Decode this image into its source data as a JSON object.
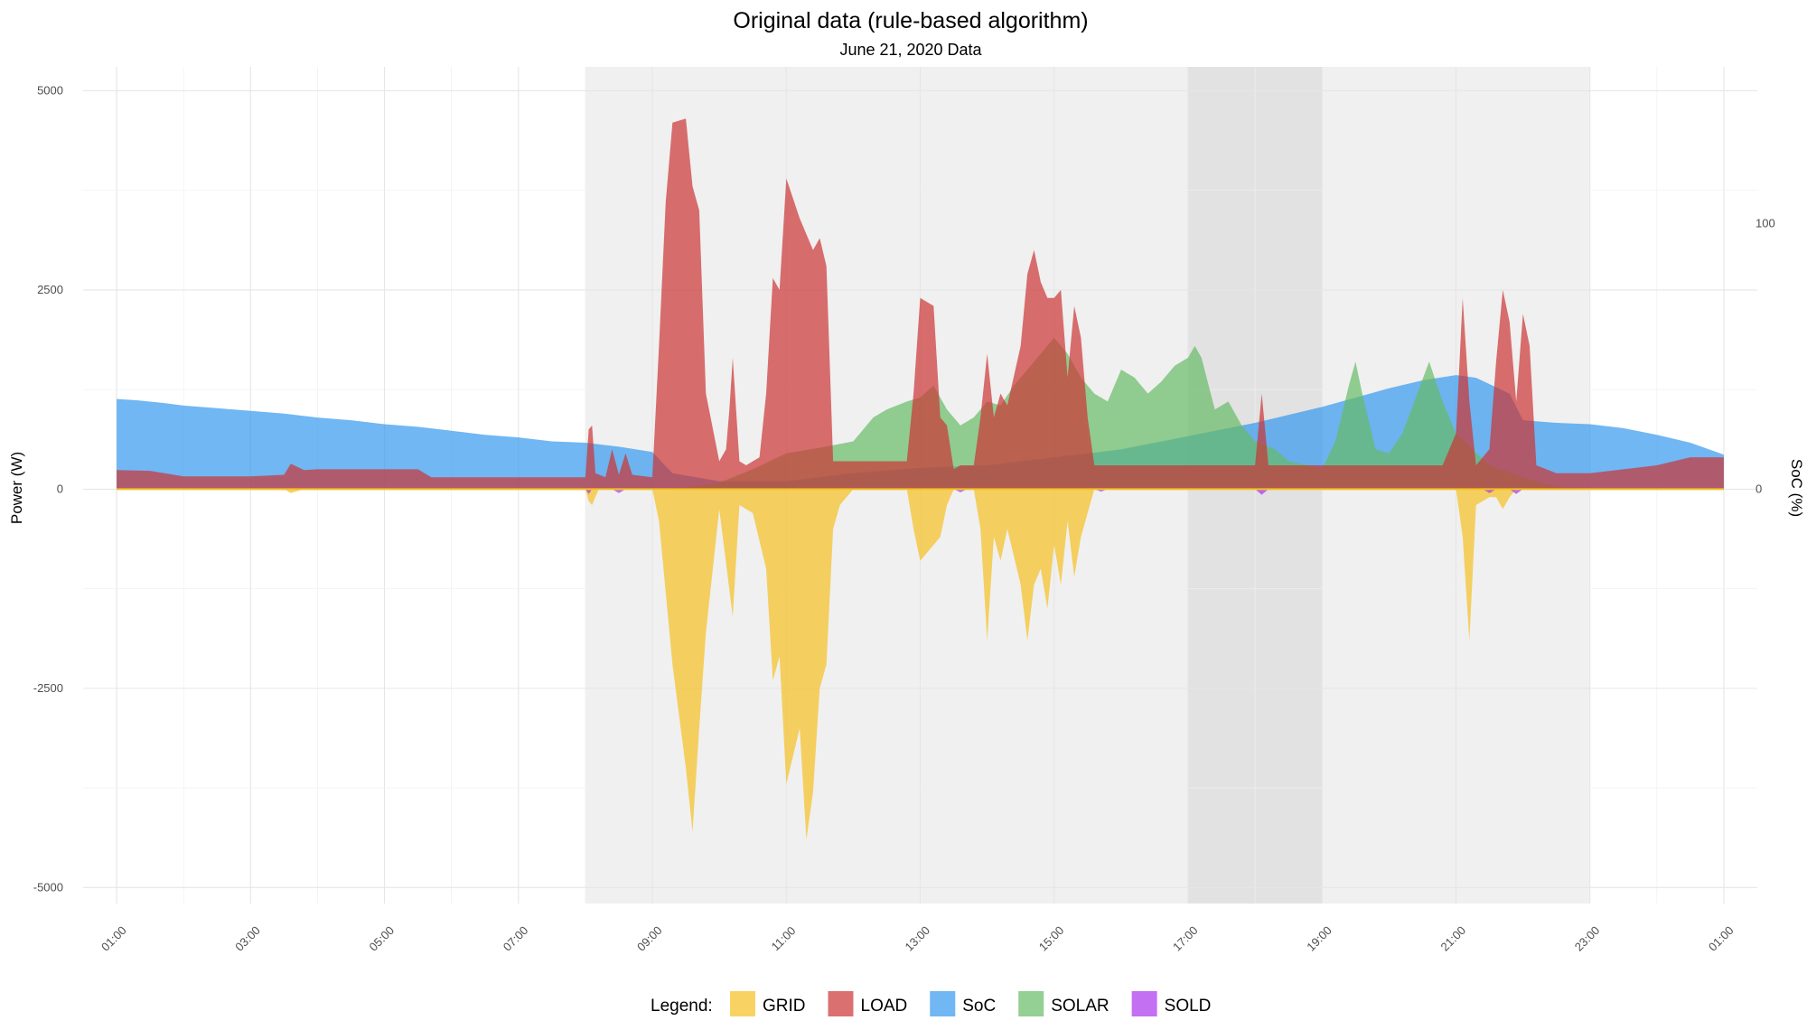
{
  "chart_data": {
    "type": "area",
    "title": "Original data (rule-based algorithm)",
    "subtitle": "June 21, 2020 Data",
    "ylabel": "Power (W)",
    "y2label": "SoC (%)",
    "ylim": [
      -5200,
      5300
    ],
    "y_ticks": [
      -5000,
      -2500,
      0,
      2500,
      5000
    ],
    "y2_ticks": [
      0,
      100
    ],
    "y2_scale_w_per_pct": 33.3,
    "x_hours_range": [
      0.5,
      25.5
    ],
    "x_ticks": [
      {
        "h": 1,
        "label": "01:00"
      },
      {
        "h": 3,
        "label": "03:00"
      },
      {
        "h": 5,
        "label": "05:00"
      },
      {
        "h": 7,
        "label": "07:00"
      },
      {
        "h": 9,
        "label": "09:00"
      },
      {
        "h": 11,
        "label": "11:00"
      },
      {
        "h": 13,
        "label": "13:00"
      },
      {
        "h": 15,
        "label": "15:00"
      },
      {
        "h": 17,
        "label": "17:00"
      },
      {
        "h": 19,
        "label": "19:00"
      },
      {
        "h": 21,
        "label": "21:00"
      },
      {
        "h": 23,
        "label": "23:00"
      },
      {
        "h": 25,
        "label": "01:00"
      }
    ],
    "shaded_periods": [
      {
        "start": 8,
        "end": 23,
        "color": "#f0f0f0"
      },
      {
        "start": 17,
        "end": 19,
        "color": "#e2e2e2"
      }
    ],
    "grid": true,
    "legend_position": "bottom",
    "legend_title": "Legend:",
    "series": [
      {
        "name": "SoC",
        "color": "#3399ee",
        "opacity": 0.7,
        "points": [
          [
            1,
            34
          ],
          [
            1.3,
            33.5
          ],
          [
            1.7,
            32.5
          ],
          [
            2,
            31.5
          ],
          [
            2.5,
            30.5
          ],
          [
            3,
            29.5
          ],
          [
            3.5,
            28.5
          ],
          [
            4,
            27
          ],
          [
            4.5,
            26
          ],
          [
            5,
            24.5
          ],
          [
            5.5,
            23.5
          ],
          [
            6,
            22
          ],
          [
            6.5,
            20.5
          ],
          [
            7,
            19.5
          ],
          [
            7.5,
            18
          ],
          [
            8,
            17.5
          ],
          [
            8.5,
            16
          ],
          [
            9,
            14
          ],
          [
            9.3,
            6
          ],
          [
            10,
            3
          ],
          [
            11,
            3
          ],
          [
            12,
            6
          ],
          [
            13,
            8
          ],
          [
            14,
            9
          ],
          [
            15,
            12
          ],
          [
            16,
            15
          ],
          [
            17,
            20
          ],
          [
            18,
            25
          ],
          [
            19,
            31
          ],
          [
            20,
            38
          ],
          [
            20.5,
            41
          ],
          [
            21,
            43
          ],
          [
            21.3,
            42
          ],
          [
            21.8,
            36
          ],
          [
            22,
            26
          ],
          [
            22.5,
            25
          ],
          [
            23,
            24.5
          ],
          [
            23.5,
            23
          ],
          [
            24,
            20.5
          ],
          [
            24.5,
            17.5
          ],
          [
            25,
            13
          ],
          [
            25,
            0
          ],
          [
            1,
            0
          ]
        ]
      },
      {
        "name": "SOLAR",
        "color": "#66bb66",
        "opacity": 0.7,
        "points": [
          [
            8,
            0
          ],
          [
            9,
            0
          ],
          [
            9.5,
            20
          ],
          [
            10,
            80
          ],
          [
            10.5,
            250
          ],
          [
            11,
            450
          ],
          [
            11.5,
            520
          ],
          [
            12,
            600
          ],
          [
            12.3,
            900
          ],
          [
            12.5,
            1000
          ],
          [
            12.8,
            1100
          ],
          [
            13,
            1150
          ],
          [
            13.2,
            1300
          ],
          [
            13.4,
            1000
          ],
          [
            13.6,
            800
          ],
          [
            13.8,
            900
          ],
          [
            14,
            1100
          ],
          [
            14.2,
            1050
          ],
          [
            14.4,
            1300
          ],
          [
            14.6,
            1500
          ],
          [
            14.8,
            1700
          ],
          [
            15,
            1900
          ],
          [
            15.2,
            1700
          ],
          [
            15.4,
            1400
          ],
          [
            15.6,
            1200
          ],
          [
            15.8,
            1100
          ],
          [
            16,
            1500
          ],
          [
            16.2,
            1400
          ],
          [
            16.4,
            1200
          ],
          [
            16.6,
            1350
          ],
          [
            16.8,
            1550
          ],
          [
            17,
            1650
          ],
          [
            17.1,
            1800
          ],
          [
            17.2,
            1650
          ],
          [
            17.4,
            1000
          ],
          [
            17.6,
            1100
          ],
          [
            17.8,
            800
          ],
          [
            18.0,
            600
          ],
          [
            18.3,
            500
          ],
          [
            18.5,
            350
          ],
          [
            18.8,
            300
          ],
          [
            19,
            250
          ],
          [
            19.2,
            600
          ],
          [
            19.4,
            1300
          ],
          [
            19.5,
            1600
          ],
          [
            19.6,
            1200
          ],
          [
            19.8,
            500
          ],
          [
            20,
            450
          ],
          [
            20.2,
            700
          ],
          [
            20.4,
            1150
          ],
          [
            20.6,
            1600
          ],
          [
            20.8,
            1100
          ],
          [
            21,
            700
          ],
          [
            21.5,
            300
          ],
          [
            22,
            150
          ],
          [
            22.5,
            30
          ],
          [
            23,
            0
          ]
        ]
      },
      {
        "name": "LOAD",
        "color": "#cc3333",
        "opacity": 0.7,
        "points": [
          [
            1,
            240
          ],
          [
            1.5,
            230
          ],
          [
            2,
            160
          ],
          [
            3,
            160
          ],
          [
            3.5,
            180
          ],
          [
            3.6,
            320
          ],
          [
            3.8,
            240
          ],
          [
            4,
            250
          ],
          [
            5,
            250
          ],
          [
            5.5,
            250
          ],
          [
            5.7,
            150
          ],
          [
            7,
            150
          ],
          [
            8,
            150
          ],
          [
            8.05,
            750
          ],
          [
            8.1,
            800
          ],
          [
            8.15,
            200
          ],
          [
            8.3,
            150
          ],
          [
            8.4,
            500
          ],
          [
            8.5,
            180
          ],
          [
            8.6,
            450
          ],
          [
            8.7,
            180
          ],
          [
            9,
            150
          ],
          [
            9.1,
            1800
          ],
          [
            9.2,
            3600
          ],
          [
            9.3,
            4600
          ],
          [
            9.5,
            4650
          ],
          [
            9.6,
            3800
          ],
          [
            9.7,
            3500
          ],
          [
            9.8,
            1200
          ],
          [
            10,
            350
          ],
          [
            10.1,
            500
          ],
          [
            10.15,
            1000
          ],
          [
            10.2,
            1650
          ],
          [
            10.3,
            350
          ],
          [
            10.4,
            300
          ],
          [
            10.6,
            400
          ],
          [
            10.7,
            1200
          ],
          [
            10.8,
            2650
          ],
          [
            10.9,
            2500
          ],
          [
            11,
            3900
          ],
          [
            11.2,
            3400
          ],
          [
            11.4,
            3000
          ],
          [
            11.5,
            3150
          ],
          [
            11.6,
            2800
          ],
          [
            11.7,
            350
          ],
          [
            12,
            350
          ],
          [
            12.5,
            350
          ],
          [
            12.8,
            350
          ],
          [
            12.9,
            1200
          ],
          [
            13,
            2400
          ],
          [
            13.2,
            2300
          ],
          [
            13.3,
            900
          ],
          [
            13.4,
            800
          ],
          [
            13.5,
            250
          ],
          [
            13.6,
            300
          ],
          [
            13.8,
            300
          ],
          [
            13.9,
            900
          ],
          [
            14,
            1700
          ],
          [
            14.1,
            900
          ],
          [
            14.2,
            1200
          ],
          [
            14.3,
            1050
          ],
          [
            14.5,
            1800
          ],
          [
            14.6,
            2700
          ],
          [
            14.7,
            3000
          ],
          [
            14.8,
            2600
          ],
          [
            14.9,
            2400
          ],
          [
            15,
            2400
          ],
          [
            15.1,
            2500
          ],
          [
            15.2,
            1400
          ],
          [
            15.3,
            2300
          ],
          [
            15.4,
            1900
          ],
          [
            15.5,
            900
          ],
          [
            15.6,
            300
          ],
          [
            16,
            300
          ],
          [
            17,
            300
          ],
          [
            17.5,
            300
          ],
          [
            18,
            300
          ],
          [
            18.1,
            1200
          ],
          [
            18.2,
            300
          ],
          [
            19,
            300
          ],
          [
            20,
            300
          ],
          [
            20.5,
            300
          ],
          [
            20.8,
            300
          ],
          [
            21,
            700
          ],
          [
            21.1,
            2400
          ],
          [
            21.2,
            1100
          ],
          [
            21.3,
            300
          ],
          [
            21.5,
            500
          ],
          [
            21.6,
            1600
          ],
          [
            21.7,
            2500
          ],
          [
            21.8,
            2100
          ],
          [
            21.9,
            1100
          ],
          [
            22,
            2200
          ],
          [
            22.1,
            1800
          ],
          [
            22.2,
            300
          ],
          [
            22.5,
            200
          ],
          [
            23,
            200
          ],
          [
            24,
            300
          ],
          [
            24.5,
            400
          ],
          [
            25,
            400
          ],
          [
            25,
            0
          ],
          [
            1,
            0
          ]
        ]
      },
      {
        "name": "GRID",
        "color": "#f5c022",
        "opacity": 0.7,
        "points": [
          [
            1,
            0
          ],
          [
            3.5,
            0
          ],
          [
            3.6,
            -50
          ],
          [
            3.8,
            0
          ],
          [
            8,
            0
          ],
          [
            8.05,
            -150
          ],
          [
            8.1,
            -200
          ],
          [
            8.2,
            0
          ],
          [
            9,
            0
          ],
          [
            9.1,
            -400
          ],
          [
            9.3,
            -2200
          ],
          [
            9.5,
            -3500
          ],
          [
            9.6,
            -4300
          ],
          [
            9.7,
            -3000
          ],
          [
            9.8,
            -1800
          ],
          [
            10,
            -250
          ],
          [
            10.2,
            -1600
          ],
          [
            10.3,
            -200
          ],
          [
            10.5,
            -300
          ],
          [
            10.7,
            -1000
          ],
          [
            10.8,
            -2400
          ],
          [
            10.9,
            -2100
          ],
          [
            11,
            -3700
          ],
          [
            11.2,
            -3000
          ],
          [
            11.3,
            -4400
          ],
          [
            11.4,
            -3800
          ],
          [
            11.5,
            -2500
          ],
          [
            11.6,
            -2200
          ],
          [
            11.7,
            -500
          ],
          [
            11.8,
            -200
          ],
          [
            12,
            0
          ],
          [
            12.8,
            0
          ],
          [
            12.9,
            -500
          ],
          [
            13,
            -900
          ],
          [
            13.2,
            -700
          ],
          [
            13.3,
            -600
          ],
          [
            13.4,
            -200
          ],
          [
            13.5,
            0
          ],
          [
            13.8,
            0
          ],
          [
            13.9,
            -500
          ],
          [
            14,
            -1900
          ],
          [
            14.1,
            -600
          ],
          [
            14.2,
            -900
          ],
          [
            14.3,
            -500
          ],
          [
            14.5,
            -1200
          ],
          [
            14.6,
            -1900
          ],
          [
            14.7,
            -1200
          ],
          [
            14.8,
            -1000
          ],
          [
            14.9,
            -1500
          ],
          [
            15,
            -700
          ],
          [
            15.1,
            -1200
          ],
          [
            15.2,
            -400
          ],
          [
            15.3,
            -1100
          ],
          [
            15.4,
            -600
          ],
          [
            15.5,
            -300
          ],
          [
            15.6,
            0
          ],
          [
            20,
            0
          ],
          [
            21,
            0
          ],
          [
            21.1,
            -600
          ],
          [
            21.2,
            -1900
          ],
          [
            21.3,
            -200
          ],
          [
            21.5,
            -100
          ],
          [
            21.6,
            -100
          ],
          [
            21.7,
            -250
          ],
          [
            21.8,
            -100
          ],
          [
            21.9,
            0
          ],
          [
            25,
            0
          ]
        ]
      },
      {
        "name": "SOLD",
        "color": "#aa33ee",
        "opacity": 0.7,
        "points": [
          [
            8,
            0
          ],
          [
            8.05,
            -60
          ],
          [
            8.1,
            0
          ],
          [
            8.4,
            0
          ],
          [
            8.5,
            -50
          ],
          [
            8.6,
            0
          ],
          [
            13.5,
            0
          ],
          [
            13.6,
            -40
          ],
          [
            13.7,
            0
          ],
          [
            15.6,
            0
          ],
          [
            15.7,
            -30
          ],
          [
            15.8,
            0
          ],
          [
            18,
            0
          ],
          [
            18.1,
            -70
          ],
          [
            18.2,
            0
          ],
          [
            21.4,
            0
          ],
          [
            21.5,
            -50
          ],
          [
            21.6,
            0
          ],
          [
            21.8,
            0
          ],
          [
            21.9,
            -60
          ],
          [
            22,
            0
          ]
        ]
      }
    ],
    "legend_order": [
      "GRID",
      "LOAD",
      "SoC",
      "SOLAR",
      "SOLD"
    ]
  }
}
